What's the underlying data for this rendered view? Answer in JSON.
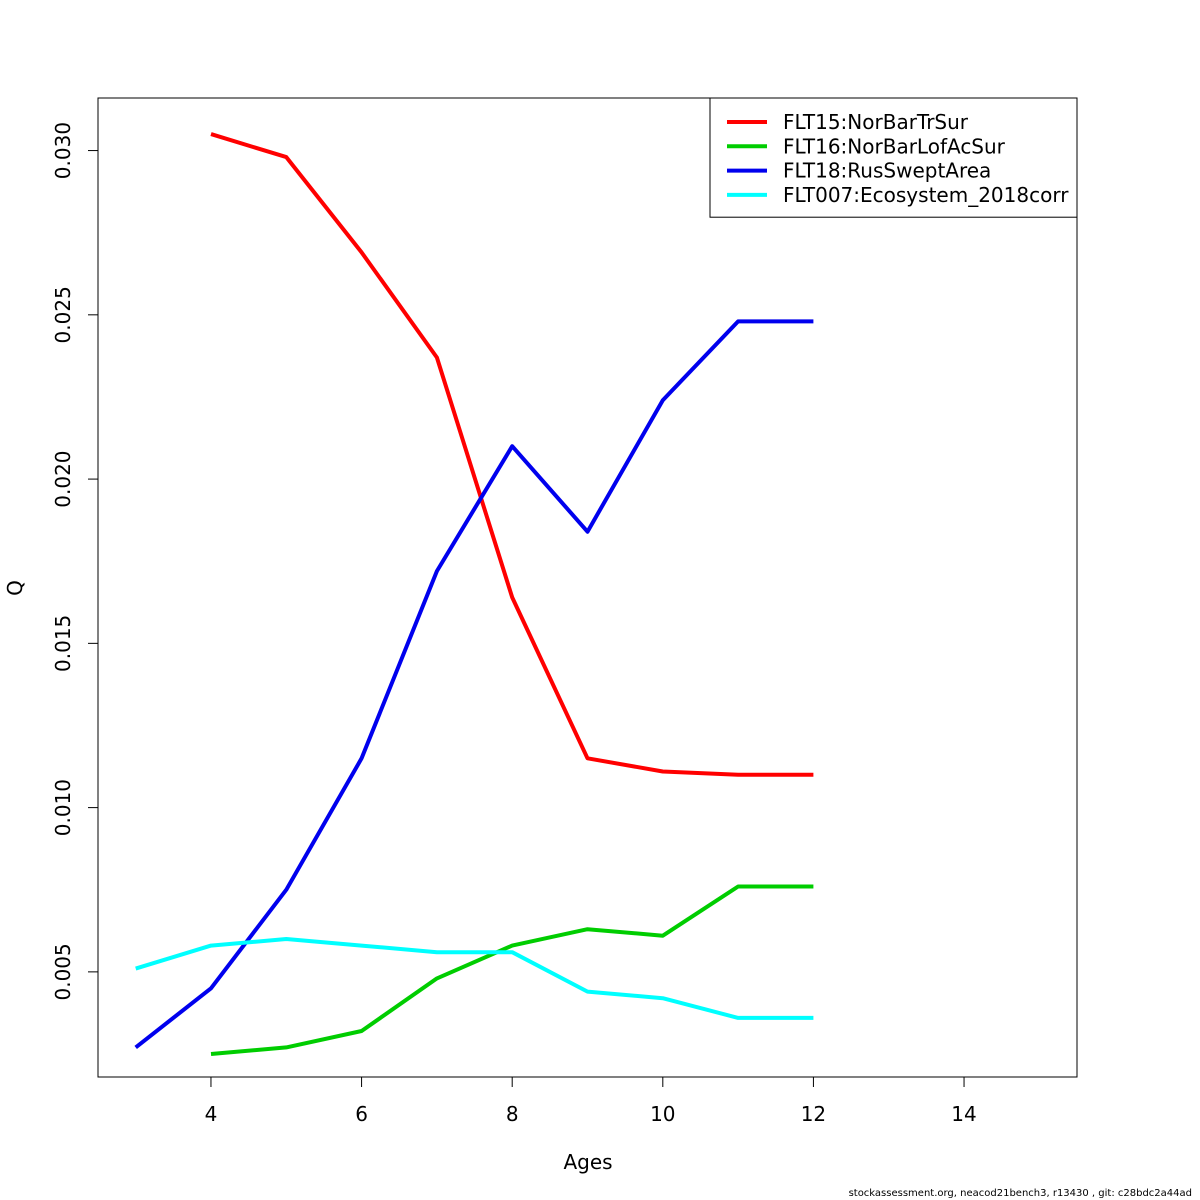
{
  "footer": "stockassessment.org, neacod21bench3, r13430 , git: c28bdc2a44ad",
  "chart_data": {
    "type": "line",
    "xlabel": "Ages",
    "ylabel": "Q",
    "xlim": [
      2.5,
      15.5
    ],
    "ylim": [
      0.0018,
      0.0316
    ],
    "xticks": [
      4,
      6,
      8,
      10,
      12,
      14
    ],
    "xtick_labels": [
      "4",
      "6",
      "8",
      "10",
      "12",
      "14"
    ],
    "yticks": [
      0.005,
      0.01,
      0.015,
      0.02,
      0.025,
      0.03
    ],
    "ytick_labels": [
      "0.005",
      "0.010",
      "0.015",
      "0.020",
      "0.025",
      "0.030"
    ],
    "grid": false,
    "legend_position": "top-right",
    "series": [
      {
        "name": "FLT15:NorBarTrSur",
        "color": "#ff0000",
        "x": [
          4,
          5,
          6,
          7,
          8,
          9,
          10,
          11,
          12
        ],
        "y": [
          0.0305,
          0.0298,
          0.0269,
          0.0237,
          0.0164,
          0.0115,
          0.0111,
          0.011,
          0.011
        ]
      },
      {
        "name": "FLT16:NorBarLofAcSur",
        "color": "#00cd00",
        "x": [
          4,
          5,
          6,
          7,
          8,
          9,
          10,
          11,
          12
        ],
        "y": [
          0.0025,
          0.0027,
          0.0032,
          0.0048,
          0.0058,
          0.0063,
          0.0061,
          0.0076,
          0.0076
        ]
      },
      {
        "name": "FLT18:RusSweptArea",
        "color": "#0000ee",
        "x": [
          3,
          4,
          5,
          6,
          7,
          8,
          9,
          10,
          11,
          12
        ],
        "y": [
          0.0027,
          0.0045,
          0.0075,
          0.0115,
          0.0172,
          0.021,
          0.0184,
          0.0224,
          0.0248,
          0.0248
        ]
      },
      {
        "name": "FLT007:Ecosystem_2018corr",
        "color": "#00ffff",
        "x": [
          3,
          4,
          5,
          6,
          7,
          8,
          9,
          10,
          11,
          12
        ],
        "y": [
          0.0051,
          0.0058,
          0.006,
          0.0058,
          0.0056,
          0.0056,
          0.0044,
          0.0042,
          0.0036,
          0.0036
        ]
      }
    ]
  }
}
